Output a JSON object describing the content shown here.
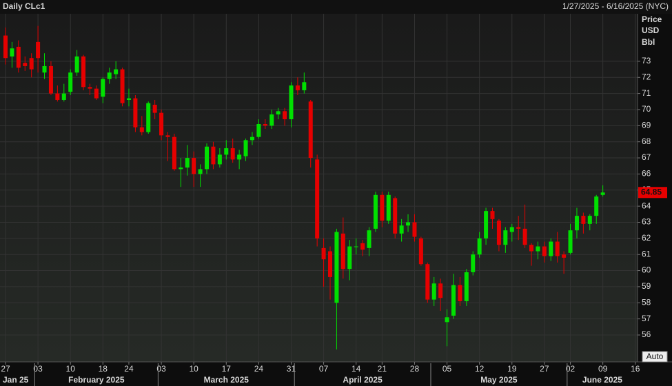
{
  "chart_data": {
    "type": "candlestick",
    "title": "Daily CLc1",
    "subtitle": "1/27/2025 - 6/16/2025 (NYC)",
    "y_axis_label": [
      "Price",
      "USD",
      "Bbl"
    ],
    "auto_button": "Auto",
    "up_color": "#00e000",
    "down_color": "#e60000",
    "grid": true,
    "x": [
      "2025-01-27",
      "2025-01-28",
      "2025-01-29",
      "2025-01-30",
      "2025-01-31",
      "2025-02-03",
      "2025-02-04",
      "2025-02-05",
      "2025-02-06",
      "2025-02-07",
      "2025-02-10",
      "2025-02-11",
      "2025-02-12",
      "2025-02-13",
      "2025-02-14",
      "2025-02-18",
      "2025-02-19",
      "2025-02-20",
      "2025-02-21",
      "2025-02-24",
      "2025-02-25",
      "2025-02-26",
      "2025-02-27",
      "2025-02-28",
      "2025-03-03",
      "2025-03-04",
      "2025-03-05",
      "2025-03-06",
      "2025-03-07",
      "2025-03-10",
      "2025-03-11",
      "2025-03-12",
      "2025-03-13",
      "2025-03-14",
      "2025-03-17",
      "2025-03-18",
      "2025-03-19",
      "2025-03-20",
      "2025-03-21",
      "2025-03-24",
      "2025-03-25",
      "2025-03-26",
      "2025-03-27",
      "2025-03-28",
      "2025-03-31",
      "2025-04-01",
      "2025-04-02",
      "2025-04-03",
      "2025-04-04",
      "2025-04-07",
      "2025-04-08",
      "2025-04-09",
      "2025-04-10",
      "2025-04-11",
      "2025-04-14",
      "2025-04-15",
      "2025-04-16",
      "2025-04-17",
      "2025-04-21",
      "2025-04-22",
      "2025-04-23",
      "2025-04-24",
      "2025-04-25",
      "2025-04-28",
      "2025-04-29",
      "2025-04-30",
      "2025-05-01",
      "2025-05-02",
      "2025-05-05",
      "2025-05-06",
      "2025-05-07",
      "2025-05-08",
      "2025-05-09",
      "2025-05-12",
      "2025-05-13",
      "2025-05-14",
      "2025-05-15",
      "2025-05-16",
      "2025-05-19",
      "2025-05-20",
      "2025-05-21",
      "2025-05-22",
      "2025-05-23",
      "2025-05-27",
      "2025-05-28",
      "2025-05-29",
      "2025-05-30",
      "2025-06-02",
      "2025-06-03",
      "2025-06-04",
      "2025-06-05",
      "2025-06-06",
      "2025-06-09"
    ],
    "open": [
      74.6,
      73.3,
      73.9,
      72.9,
      73.2,
      74.2,
      72.3,
      72.7,
      71.0,
      70.6,
      71.1,
      72.3,
      73.3,
      71.4,
      71.3,
      70.8,
      71.9,
      72.2,
      72.5,
      70.6,
      70.7,
      68.9,
      68.6,
      70.3,
      69.8,
      68.4,
      68.3,
      66.3,
      66.4,
      67.0,
      66.0,
      66.3,
      67.7,
      66.6,
      67.2,
      67.6,
      66.9,
      67.1,
      68.1,
      68.3,
      69.1,
      69.0,
      69.7,
      69.9,
      69.4,
      71.5,
      71.2,
      70.5,
      66.9,
      61.4,
      61.2,
      58.0,
      62.3,
      60.1,
      61.5,
      61.7,
      61.4,
      62.6,
      64.7,
      63.1,
      64.5,
      62.3,
      62.8,
      63.0,
      62.0,
      60.4,
      58.2,
      59.2,
      56.8,
      57.2,
      59.1,
      58.1,
      59.9,
      61.0,
      62.0,
      63.7,
      63.1,
      61.6,
      62.4,
      62.7,
      62.6,
      61.6,
      61.2,
      61.5,
      60.9,
      61.8,
      61.0,
      61.1,
      62.5,
      63.4,
      62.9,
      63.4,
      64.7
    ],
    "high": [
      75.1,
      74.2,
      74.3,
      73.3,
      73.5,
      75.2,
      73.5,
      73.0,
      71.5,
      71.6,
      72.5,
      73.7,
      73.4,
      71.6,
      71.5,
      72.0,
      72.6,
      73.0,
      72.6,
      71.3,
      70.9,
      69.6,
      70.5,
      70.6,
      70.0,
      68.6,
      68.5,
      67.0,
      67.8,
      67.4,
      66.6,
      67.9,
      68.0,
      67.6,
      68.1,
      68.2,
      67.5,
      68.2,
      68.6,
      69.4,
      69.4,
      70.0,
      70.1,
      70.1,
      71.7,
      72.0,
      72.3,
      70.6,
      67.2,
      62.0,
      61.5,
      62.6,
      63.3,
      61.9,
      62.0,
      61.9,
      62.7,
      64.9,
      64.9,
      64.9,
      64.6,
      63.2,
      63.5,
      63.5,
      62.1,
      60.5,
      59.6,
      59.5,
      57.6,
      59.8,
      59.6,
      60.1,
      61.2,
      62.4,
      63.9,
      63.9,
      63.2,
      62.7,
      62.9,
      63.4,
      64.1,
      61.7,
      61.8,
      61.8,
      62.0,
      62.4,
      61.2,
      62.9,
      63.9,
      63.6,
      63.5,
      64.7,
      65.3
    ],
    "low": [
      72.8,
      72.6,
      72.3,
      72.4,
      72.0,
      72.3,
      71.9,
      70.9,
      70.5,
      70.5,
      70.9,
      72.1,
      71.2,
      70.9,
      70.6,
      70.4,
      71.6,
      71.9,
      70.2,
      70.2,
      68.6,
      68.4,
      68.5,
      69.4,
      68.1,
      66.8,
      66.2,
      65.2,
      65.9,
      65.2,
      65.2,
      66.0,
      66.3,
      66.4,
      66.9,
      66.7,
      66.3,
      66.8,
      67.8,
      68.2,
      68.8,
      68.8,
      69.4,
      69.0,
      68.9,
      70.9,
      71.0,
      66.4,
      61.5,
      59.0,
      58.2,
      55.1,
      59.5,
      59.4,
      61.0,
      60.9,
      60.9,
      62.4,
      62.7,
      62.9,
      62.0,
      61.8,
      62.4,
      61.8,
      60.3,
      58.0,
      57.8,
      57.5,
      55.3,
      57.0,
      57.8,
      57.8,
      59.7,
      60.8,
      61.6,
      62.6,
      61.2,
      61.1,
      61.8,
      61.9,
      61.4,
      60.3,
      60.7,
      60.5,
      60.6,
      60.5,
      59.8,
      61.0,
      62.0,
      62.3,
      62.5,
      62.9,
      64.6
    ],
    "close": [
      73.2,
      73.8,
      72.6,
      72.7,
      72.5,
      73.2,
      72.7,
      71.0,
      70.6,
      71.0,
      72.3,
      73.3,
      71.4,
      71.3,
      70.7,
      71.9,
      72.3,
      72.5,
      70.4,
      70.7,
      68.9,
      68.6,
      70.4,
      69.8,
      68.4,
      68.3,
      66.3,
      66.4,
      67.0,
      66.0,
      66.3,
      67.7,
      66.6,
      67.2,
      67.6,
      66.9,
      67.2,
      68.1,
      68.3,
      69.1,
      69.0,
      69.7,
      69.9,
      69.4,
      71.5,
      71.2,
      71.7,
      67.0,
      62.0,
      60.7,
      59.6,
      62.4,
      60.1,
      61.5,
      61.5,
      61.3,
      62.5,
      64.7,
      63.1,
      64.7,
      62.3,
      62.8,
      63.0,
      62.1,
      60.4,
      58.2,
      59.2,
      58.3,
      57.1,
      59.1,
      58.1,
      59.9,
      61.0,
      62.0,
      63.7,
      63.2,
      61.6,
      62.5,
      62.7,
      62.6,
      61.6,
      61.2,
      61.5,
      60.9,
      61.8,
      60.9,
      60.8,
      62.5,
      63.4,
      62.9,
      63.4,
      64.6,
      64.85
    ],
    "ylim": [
      54.33,
      75.95
    ],
    "yticks": [
      56,
      57,
      58,
      59,
      60,
      61,
      62,
      63,
      64,
      65,
      66,
      67,
      68,
      69,
      70,
      71,
      72,
      73
    ],
    "xticks": [
      {
        "value": "2025-01-27",
        "label": "27"
      },
      {
        "value": "2025-02-03",
        "label": "03"
      },
      {
        "value": "2025-02-10",
        "label": "10"
      },
      {
        "value": "2025-02-18",
        "label": "18"
      },
      {
        "value": "2025-02-24",
        "label": "24"
      },
      {
        "value": "2025-03-03",
        "label": "03"
      },
      {
        "value": "2025-03-10",
        "label": "10"
      },
      {
        "value": "2025-03-17",
        "label": "17"
      },
      {
        "value": "2025-03-24",
        "label": "24"
      },
      {
        "value": "2025-03-31",
        "label": "31"
      },
      {
        "value": "2025-04-07",
        "label": "07"
      },
      {
        "value": "2025-04-14",
        "label": "14"
      },
      {
        "value": "2025-04-21",
        "label": "21"
      },
      {
        "value": "2025-04-28",
        "label": "28"
      },
      {
        "value": "2025-05-05",
        "label": "05"
      },
      {
        "value": "2025-05-12",
        "label": "12"
      },
      {
        "value": "2025-05-19",
        "label": "19"
      },
      {
        "value": "2025-05-27",
        "label": "27"
      },
      {
        "value": "2025-06-02",
        "label": "02"
      },
      {
        "value": "2025-06-09",
        "label": "09"
      },
      {
        "value": "2025-06-16",
        "label": "16"
      }
    ],
    "month_ticks": [
      {
        "value": "2025-01",
        "label": "Jan 25"
      },
      {
        "value": "2025-02",
        "label": "February 2025"
      },
      {
        "value": "2025-03",
        "label": "March 2025"
      },
      {
        "value": "2025-04",
        "label": "April 2025"
      },
      {
        "value": "2025-05",
        "label": "May 2025"
      },
      {
        "value": "2025-06",
        "label": "June 2025"
      }
    ]
  }
}
